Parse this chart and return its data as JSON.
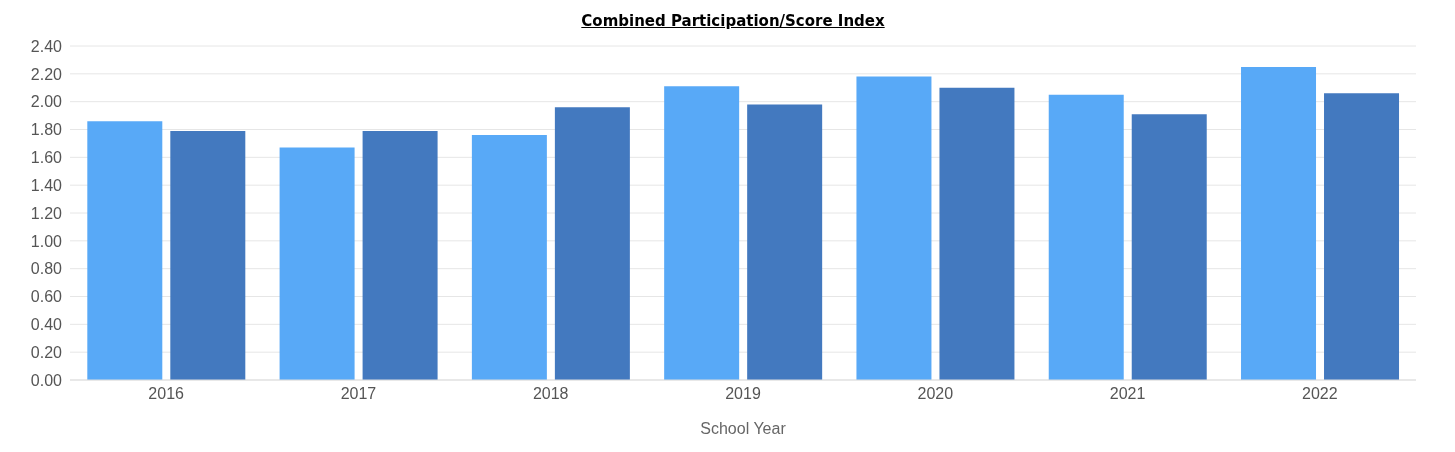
{
  "chart_data": {
    "type": "bar",
    "title": "Combined Participation/Score Index",
    "xlabel": "School Year",
    "categories": [
      "2016",
      "2017",
      "2018",
      "2019",
      "2020",
      "2021",
      "2022"
    ],
    "series": [
      {
        "color": "#58a9f7",
        "values": [
          1.86,
          1.67,
          1.76,
          2.11,
          2.18,
          2.05,
          2.25
        ]
      },
      {
        "color": "#4379bf",
        "values": [
          1.79,
          1.79,
          1.96,
          1.98,
          2.1,
          1.91,
          2.06
        ]
      }
    ],
    "ylim": [
      0,
      2.4
    ],
    "yticks": [
      {
        "value": 0,
        "label": "0.00"
      },
      {
        "value": 0.2,
        "label": "0.20"
      },
      {
        "value": 0.4,
        "label": "0.40"
      },
      {
        "value": 0.6,
        "label": "0.60"
      },
      {
        "value": 0.8,
        "label": "0.80"
      },
      {
        "value": 1,
        "label": "1.00"
      },
      {
        "value": 1.2,
        "label": "1.20"
      },
      {
        "value": 1.4,
        "label": "1.40"
      },
      {
        "value": 1.6,
        "label": "1.60"
      },
      {
        "value": 1.8,
        "label": "1.80"
      },
      {
        "value": 2,
        "label": "2.00"
      },
      {
        "value": 2.2,
        "label": "2.20"
      },
      {
        "value": 2.4,
        "label": "2.40"
      }
    ],
    "grid": "y",
    "legend": false
  }
}
